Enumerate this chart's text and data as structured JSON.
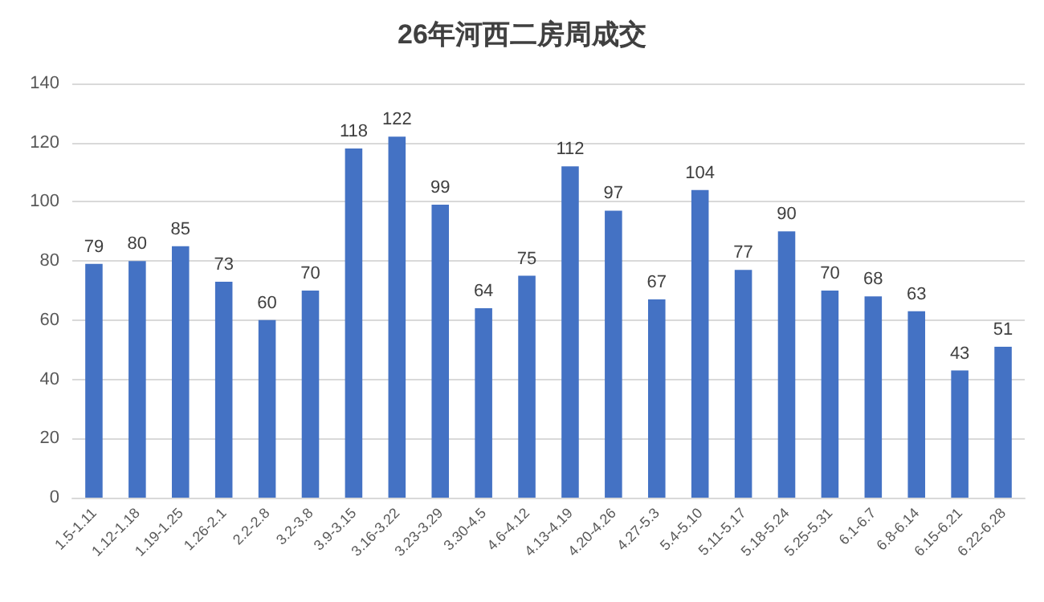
{
  "chart_data": {
    "type": "bar",
    "title": "26年河西二房周成交",
    "categories": [
      "1.5-1.11",
      "1.12-1.18",
      "1.19-1.25",
      "1.26-2.1",
      "2.2-2.8",
      "3.2-3.8",
      "3.9-3.15",
      "3.16-3.22",
      "3.23-3.29",
      "3.30-4.5",
      "4.6-4.12",
      "4.13-4.19",
      "4.20-4.26",
      "4.27-5.3",
      "5.4-5.10",
      "5.11-5.17",
      "5.18-5.24",
      "5.25-5.31",
      "6.1-6.7",
      "6.8-6.14",
      "6.15-6.21",
      "6.22-6.28"
    ],
    "values": [
      79,
      80,
      85,
      73,
      60,
      70,
      118,
      122,
      99,
      64,
      75,
      112,
      97,
      67,
      104,
      77,
      90,
      70,
      68,
      63,
      43,
      51
    ],
    "color": "#4472c4",
    "ylim": [
      0,
      140
    ],
    "yticks": [
      0,
      20,
      40,
      60,
      80,
      100,
      120,
      140
    ],
    "grid": "y",
    "data_labels": true
  }
}
